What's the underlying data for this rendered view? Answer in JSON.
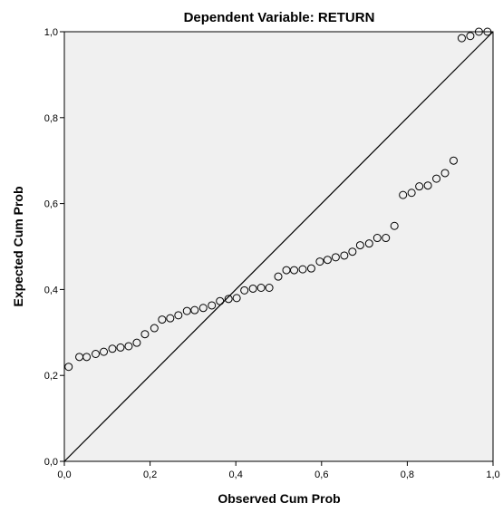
{
  "chart_data": {
    "type": "scatter",
    "title": "Dependent Variable: RETURN",
    "xlabel": "Observed Cum Prob",
    "ylabel": "Expected Cum Prob",
    "xlim": [
      0,
      1
    ],
    "ylim": [
      0,
      1
    ],
    "x_ticks": [
      "0,0",
      "0,2",
      "0,4",
      "0,6",
      "0,8",
      "1,0"
    ],
    "y_ticks": [
      "0,0",
      "0,2",
      "0,4",
      "0,6",
      "0,8",
      "1,0"
    ],
    "grid": false,
    "reference_line": {
      "from": [
        0,
        0
      ],
      "to": [
        1,
        1
      ]
    },
    "colors": {
      "plot_background": "#f0f0f0",
      "marker_stroke": "#000000",
      "line": "#000000"
    },
    "series": [
      {
        "x": [
          0.01,
          0.035,
          0.052,
          0.073,
          0.092,
          0.112,
          0.131,
          0.15,
          0.169,
          0.188,
          0.21,
          0.228,
          0.247,
          0.266,
          0.286,
          0.304,
          0.324,
          0.344,
          0.363,
          0.383,
          0.402,
          0.42,
          0.44,
          0.459,
          0.478,
          0.499,
          0.518,
          0.536,
          0.556,
          0.576,
          0.596,
          0.614,
          0.633,
          0.653,
          0.672,
          0.69,
          0.711,
          0.73,
          0.75,
          0.77,
          0.79,
          0.81,
          0.828,
          0.848,
          0.868,
          0.888,
          0.908,
          0.927,
          0.947,
          0.967,
          0.987
        ],
        "y": [
          0.22,
          0.243,
          0.243,
          0.25,
          0.255,
          0.262,
          0.265,
          0.268,
          0.276,
          0.296,
          0.31,
          0.33,
          0.333,
          0.34,
          0.35,
          0.352,
          0.357,
          0.363,
          0.373,
          0.378,
          0.38,
          0.398,
          0.402,
          0.404,
          0.404,
          0.43,
          0.445,
          0.445,
          0.447,
          0.449,
          0.465,
          0.469,
          0.475,
          0.479,
          0.488,
          0.503,
          0.507,
          0.52,
          0.52,
          0.548,
          0.62,
          0.625,
          0.64,
          0.642,
          0.658,
          0.671,
          0.7,
          0.985,
          0.99,
          1.0,
          1.0
        ]
      }
    ]
  }
}
